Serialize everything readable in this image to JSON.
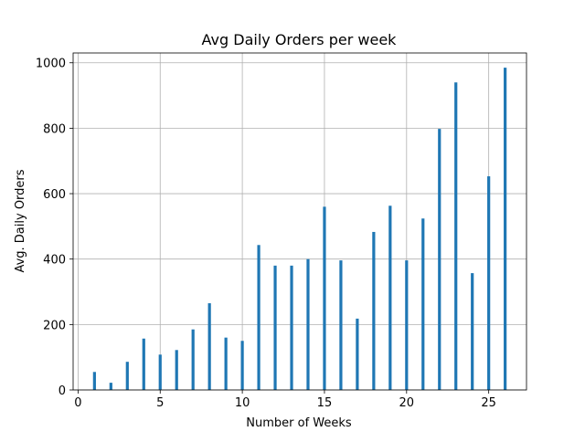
{
  "chart_data": {
    "type": "bar",
    "title": "Avg Daily Orders per week",
    "xlabel": "Number of Weeks",
    "ylabel": "Avg. Daily Orders",
    "xlim": [
      -0.3,
      27.3
    ],
    "ylim": [
      0,
      1030
    ],
    "xticks": [
      0,
      5,
      10,
      15,
      20,
      25
    ],
    "yticks": [
      0,
      200,
      400,
      600,
      800,
      1000
    ],
    "grid": true,
    "bar_color": "#1f77b4",
    "x": [
      1,
      2,
      3,
      4,
      5,
      6,
      7,
      8,
      9,
      10,
      11,
      12,
      13,
      14,
      15,
      16,
      17,
      18,
      19,
      20,
      21,
      22,
      23,
      24,
      25,
      26
    ],
    "values": [
      55,
      22,
      86,
      157,
      108,
      122,
      185,
      265,
      160,
      150,
      443,
      380,
      380,
      400,
      560,
      396,
      218,
      483,
      563,
      396,
      524,
      798,
      940,
      357,
      653,
      985
    ]
  }
}
